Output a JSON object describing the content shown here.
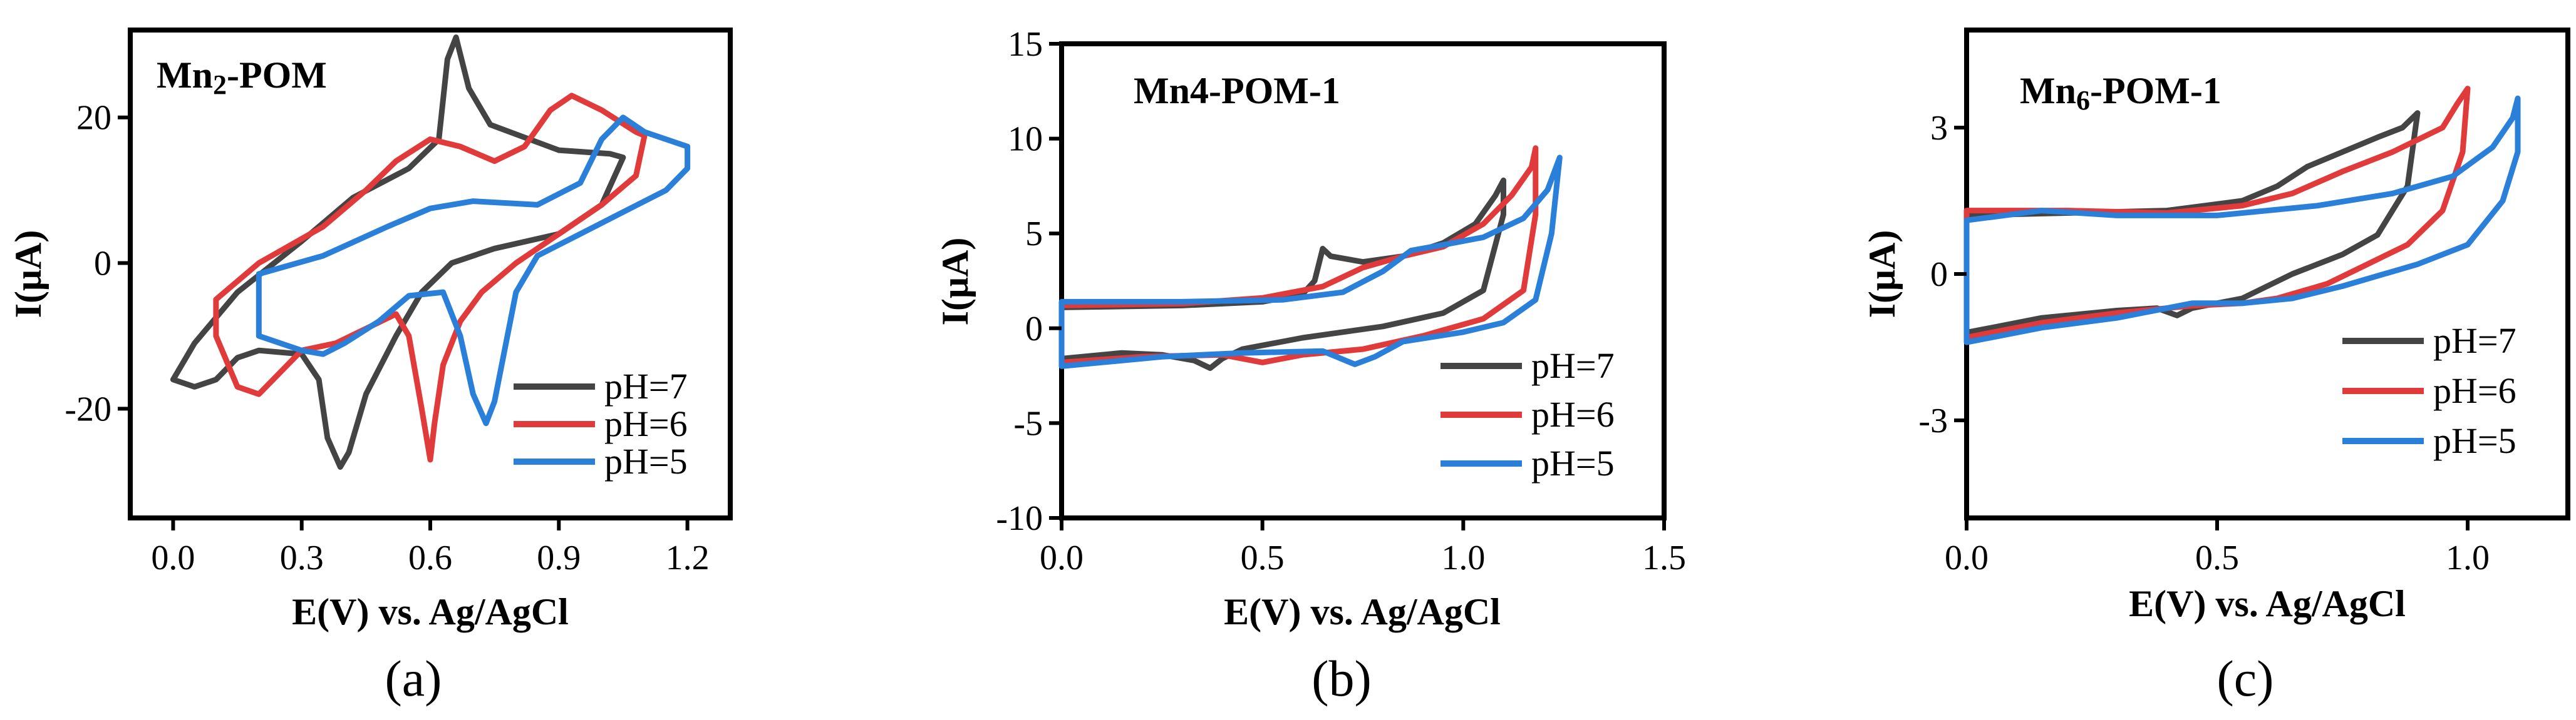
{
  "chart_data": [
    {
      "type": "line",
      "panel_label": "(a)",
      "title": "Mn2-POM",
      "title_main": "Mn",
      "title_sub": "2",
      "title_rest": "-POM",
      "xlabel": "E(V) vs. Ag/AgCl",
      "ylabel": "I(μA)",
      "xlim": [
        -0.1,
        1.3
      ],
      "ylim": [
        -35,
        32
      ],
      "xticks": [
        0.0,
        0.3,
        0.6,
        0.9,
        1.2
      ],
      "xtick_labels": [
        "0.0",
        "0.3",
        "0.6",
        "0.9",
        "1.2"
      ],
      "yticks": [
        -20,
        0,
        20
      ],
      "ytick_labels": [
        "-20",
        "0",
        "20"
      ],
      "series": [
        {
          "name": "pH=7",
          "color": "#444444",
          "closed": true,
          "points": [
            [
              0.0,
              -16
            ],
            [
              0.05,
              -11
            ],
            [
              0.15,
              -4
            ],
            [
              0.3,
              3
            ],
            [
              0.42,
              9
            ],
            [
              0.55,
              13
            ],
            [
              0.62,
              17
            ],
            [
              0.64,
              28
            ],
            [
              0.66,
              31
            ],
            [
              0.69,
              24
            ],
            [
              0.74,
              19
            ],
            [
              0.9,
              15.5
            ],
            [
              1.02,
              15
            ],
            [
              1.05,
              14.5
            ],
            [
              1.0,
              8
            ],
            [
              0.9,
              4
            ],
            [
              0.75,
              2
            ],
            [
              0.65,
              0
            ],
            [
              0.58,
              -4
            ],
            [
              0.52,
              -10
            ],
            [
              0.45,
              -18
            ],
            [
              0.41,
              -26
            ],
            [
              0.39,
              -28
            ],
            [
              0.36,
              -24
            ],
            [
              0.34,
              -16
            ],
            [
              0.3,
              -12.5
            ],
            [
              0.2,
              -12
            ],
            [
              0.15,
              -13
            ],
            [
              0.1,
              -16
            ],
            [
              0.05,
              -17
            ],
            [
              0.0,
              -16
            ]
          ]
        },
        {
          "name": "pH=6",
          "color": "#e03a3a",
          "closed": true,
          "points": [
            [
              0.1,
              -5
            ],
            [
              0.2,
              0
            ],
            [
              0.35,
              5
            ],
            [
              0.45,
              10
            ],
            [
              0.52,
              14
            ],
            [
              0.6,
              17
            ],
            [
              0.67,
              16
            ],
            [
              0.75,
              14
            ],
            [
              0.82,
              16
            ],
            [
              0.88,
              21
            ],
            [
              0.93,
              23
            ],
            [
              1.0,
              21
            ],
            [
              1.08,
              18
            ],
            [
              1.1,
              17.5
            ],
            [
              1.08,
              12
            ],
            [
              1.0,
              8
            ],
            [
              0.9,
              4
            ],
            [
              0.8,
              0
            ],
            [
              0.72,
              -4
            ],
            [
              0.67,
              -8
            ],
            [
              0.63,
              -14
            ],
            [
              0.61,
              -22
            ],
            [
              0.6,
              -27
            ],
            [
              0.58,
              -20
            ],
            [
              0.55,
              -10
            ],
            [
              0.52,
              -7
            ],
            [
              0.45,
              -9
            ],
            [
              0.38,
              -11
            ],
            [
              0.3,
              -12
            ],
            [
              0.2,
              -18
            ],
            [
              0.15,
              -17
            ],
            [
              0.1,
              -10
            ],
            [
              0.1,
              -5
            ]
          ]
        },
        {
          "name": "pH=5",
          "color": "#2a7fd9",
          "closed": true,
          "points": [
            [
              0.2,
              -1.5
            ],
            [
              0.35,
              1
            ],
            [
              0.5,
              5
            ],
            [
              0.6,
              7.5
            ],
            [
              0.7,
              8.5
            ],
            [
              0.85,
              8
            ],
            [
              0.95,
              11
            ],
            [
              1.0,
              17
            ],
            [
              1.05,
              20
            ],
            [
              1.1,
              18
            ],
            [
              1.2,
              16
            ],
            [
              1.2,
              13
            ],
            [
              1.15,
              10
            ],
            [
              1.05,
              7
            ],
            [
              0.95,
              4
            ],
            [
              0.85,
              1
            ],
            [
              0.8,
              -4
            ],
            [
              0.77,
              -13
            ],
            [
              0.75,
              -19
            ],
            [
              0.73,
              -22
            ],
            [
              0.7,
              -18
            ],
            [
              0.67,
              -10
            ],
            [
              0.63,
              -4
            ],
            [
              0.55,
              -4.5
            ],
            [
              0.48,
              -8
            ],
            [
              0.4,
              -11
            ],
            [
              0.35,
              -12.5
            ],
            [
              0.3,
              -12
            ],
            [
              0.25,
              -11
            ],
            [
              0.2,
              -10
            ],
            [
              0.2,
              -1.5
            ]
          ]
        }
      ],
      "legend": [
        {
          "label": "pH=7",
          "color": "#444444"
        },
        {
          "label": "pH=6",
          "color": "#e03a3a"
        },
        {
          "label": "pH=5",
          "color": "#2a7fd9"
        }
      ],
      "legend_position": "bottom-right"
    },
    {
      "type": "line",
      "panel_label": "(b)",
      "title": "Mn4-POM-1",
      "title_main": "Mn4-POM-1",
      "title_sub": "",
      "title_rest": "",
      "xlabel": "E(V) vs. Ag/AgCl",
      "ylabel": "I(μA)",
      "xlim": [
        0.0,
        1.5
      ],
      "ylim": [
        -10,
        15
      ],
      "xticks": [
        0.0,
        0.5,
        1.0,
        1.5
      ],
      "xtick_labels": [
        "0.0",
        "0.5",
        "1.0",
        "1.5"
      ],
      "yticks": [
        -10,
        -5,
        0,
        5,
        10,
        15
      ],
      "ytick_labels": [
        "-10",
        "-5",
        "0",
        "5",
        "10",
        "15"
      ],
      "series": [
        {
          "name": "pH=7",
          "color": "#444444",
          "closed": true,
          "points": [
            [
              0.0,
              1.1
            ],
            [
              0.3,
              1.2
            ],
            [
              0.5,
              1.4
            ],
            [
              0.6,
              1.8
            ],
            [
              0.63,
              2.5
            ],
            [
              0.65,
              4.2
            ],
            [
              0.67,
              3.8
            ],
            [
              0.75,
              3.5
            ],
            [
              0.85,
              3.8
            ],
            [
              0.95,
              4.5
            ],
            [
              1.03,
              5.5
            ],
            [
              1.08,
              7
            ],
            [
              1.1,
              7.8
            ],
            [
              1.1,
              6
            ],
            [
              1.05,
              2
            ],
            [
              0.95,
              0.8
            ],
            [
              0.8,
              0.1
            ],
            [
              0.6,
              -0.5
            ],
            [
              0.45,
              -1.1
            ],
            [
              0.4,
              -1.6
            ],
            [
              0.37,
              -2.1
            ],
            [
              0.33,
              -1.7
            ],
            [
              0.25,
              -1.4
            ],
            [
              0.15,
              -1.3
            ],
            [
              0.0,
              -1.6
            ],
            [
              0.0,
              1.1
            ]
          ]
        },
        {
          "name": "pH=6",
          "color": "#e03a3a",
          "closed": true,
          "points": [
            [
              0.0,
              1.2
            ],
            [
              0.3,
              1.3
            ],
            [
              0.5,
              1.6
            ],
            [
              0.65,
              2.2
            ],
            [
              0.75,
              3.2
            ],
            [
              0.85,
              3.8
            ],
            [
              0.95,
              4.3
            ],
            [
              1.05,
              5.5
            ],
            [
              1.12,
              7
            ],
            [
              1.17,
              8.5
            ],
            [
              1.18,
              9.5
            ],
            [
              1.18,
              6
            ],
            [
              1.15,
              2
            ],
            [
              1.05,
              0.5
            ],
            [
              0.9,
              -0.4
            ],
            [
              0.75,
              -1.1
            ],
            [
              0.6,
              -1.4
            ],
            [
              0.5,
              -1.8
            ],
            [
              0.4,
              -1.4
            ],
            [
              0.2,
              -1.5
            ],
            [
              0.0,
              -1.8
            ],
            [
              0.0,
              1.2
            ]
          ]
        },
        {
          "name": "pH=5",
          "color": "#2a7fd9",
          "closed": true,
          "points": [
            [
              0.0,
              1.4
            ],
            [
              0.3,
              1.4
            ],
            [
              0.55,
              1.5
            ],
            [
              0.7,
              1.9
            ],
            [
              0.8,
              3
            ],
            [
              0.87,
              4.1
            ],
            [
              0.95,
              4.4
            ],
            [
              1.05,
              4.8
            ],
            [
              1.15,
              5.8
            ],
            [
              1.21,
              7.3
            ],
            [
              1.24,
              9
            ],
            [
              1.22,
              5
            ],
            [
              1.18,
              1.5
            ],
            [
              1.1,
              0.3
            ],
            [
              1.0,
              -0.2
            ],
            [
              0.85,
              -0.7
            ],
            [
              0.78,
              -1.5
            ],
            [
              0.73,
              -1.9
            ],
            [
              0.65,
              -1.2
            ],
            [
              0.45,
              -1.3
            ],
            [
              0.25,
              -1.5
            ],
            [
              0.0,
              -2.0
            ],
            [
              0.0,
              1.4
            ]
          ]
        }
      ],
      "legend": [
        {
          "label": "pH=7",
          "color": "#444444"
        },
        {
          "label": "pH=6",
          "color": "#e03a3a"
        },
        {
          "label": "pH=5",
          "color": "#2a7fd9"
        }
      ],
      "legend_position": "bottom-right"
    },
    {
      "type": "line",
      "panel_label": "(c)",
      "title": "Mn6-POM-1",
      "title_main": "Mn",
      "title_sub": "6",
      "title_rest": "-POM-1",
      "xlabel": "E(V) vs. Ag/AgCl",
      "ylabel": "I(μA)",
      "xlim": [
        0.0,
        1.2
      ],
      "ylim": [
        -5,
        5
      ],
      "xticks": [
        0.0,
        0.5,
        1.0
      ],
      "xtick_labels": [
        "0.0",
        "0.5",
        "1.0"
      ],
      "yticks": [
        -3,
        0,
        3
      ],
      "ytick_labels": [
        "-3",
        "0",
        "3"
      ],
      "series": [
        {
          "name": "pH=7",
          "color": "#444444",
          "closed": true,
          "points": [
            [
              0.0,
              1.2
            ],
            [
              0.2,
              1.25
            ],
            [
              0.4,
              1.3
            ],
            [
              0.55,
              1.5
            ],
            [
              0.62,
              1.8
            ],
            [
              0.68,
              2.2
            ],
            [
              0.75,
              2.5
            ],
            [
              0.82,
              2.8
            ],
            [
              0.87,
              3.0
            ],
            [
              0.9,
              3.3
            ],
            [
              0.88,
              1.8
            ],
            [
              0.82,
              0.8
            ],
            [
              0.75,
              0.4
            ],
            [
              0.65,
              0.0
            ],
            [
              0.55,
              -0.5
            ],
            [
              0.45,
              -0.7
            ],
            [
              0.42,
              -0.85
            ],
            [
              0.38,
              -0.7
            ],
            [
              0.3,
              -0.75
            ],
            [
              0.15,
              -0.9
            ],
            [
              0.0,
              -1.2
            ],
            [
              0.0,
              1.2
            ]
          ]
        },
        {
          "name": "pH=6",
          "color": "#e03a3a",
          "closed": true,
          "points": [
            [
              0.0,
              1.3
            ],
            [
              0.2,
              1.3
            ],
            [
              0.4,
              1.25
            ],
            [
              0.55,
              1.4
            ],
            [
              0.65,
              1.65
            ],
            [
              0.75,
              2.1
            ],
            [
              0.85,
              2.5
            ],
            [
              0.95,
              3.0
            ],
            [
              0.98,
              3.5
            ],
            [
              1.0,
              3.8
            ],
            [
              0.99,
              2.5
            ],
            [
              0.95,
              1.3
            ],
            [
              0.88,
              0.6
            ],
            [
              0.8,
              0.2
            ],
            [
              0.72,
              -0.2
            ],
            [
              0.62,
              -0.5
            ],
            [
              0.55,
              -0.6
            ],
            [
              0.45,
              -0.65
            ],
            [
              0.3,
              -0.8
            ],
            [
              0.15,
              -1.0
            ],
            [
              0.0,
              -1.3
            ],
            [
              0.0,
              1.3
            ]
          ]
        },
        {
          "name": "pH=5",
          "color": "#2a7fd9",
          "closed": true,
          "points": [
            [
              0.0,
              1.1
            ],
            [
              0.15,
              1.3
            ],
            [
              0.3,
              1.2
            ],
            [
              0.5,
              1.2
            ],
            [
              0.7,
              1.4
            ],
            [
              0.85,
              1.65
            ],
            [
              0.97,
              2.0
            ],
            [
              1.05,
              2.6
            ],
            [
              1.09,
              3.2
            ],
            [
              1.1,
              3.6
            ],
            [
              1.1,
              2.5
            ],
            [
              1.07,
              1.5
            ],
            [
              1.0,
              0.6
            ],
            [
              0.9,
              0.2
            ],
            [
              0.75,
              -0.25
            ],
            [
              0.65,
              -0.5
            ],
            [
              0.55,
              -0.6
            ],
            [
              0.45,
              -0.6
            ],
            [
              0.3,
              -0.9
            ],
            [
              0.15,
              -1.1
            ],
            [
              0.0,
              -1.4
            ],
            [
              0.0,
              1.1
            ]
          ]
        }
      ],
      "legend": [
        {
          "label": "pH=7",
          "color": "#444444"
        },
        {
          "label": "pH=6",
          "color": "#e03a3a"
        },
        {
          "label": "pH=5",
          "color": "#2a7fd9"
        }
      ],
      "legend_position": "bottom-right"
    }
  ]
}
